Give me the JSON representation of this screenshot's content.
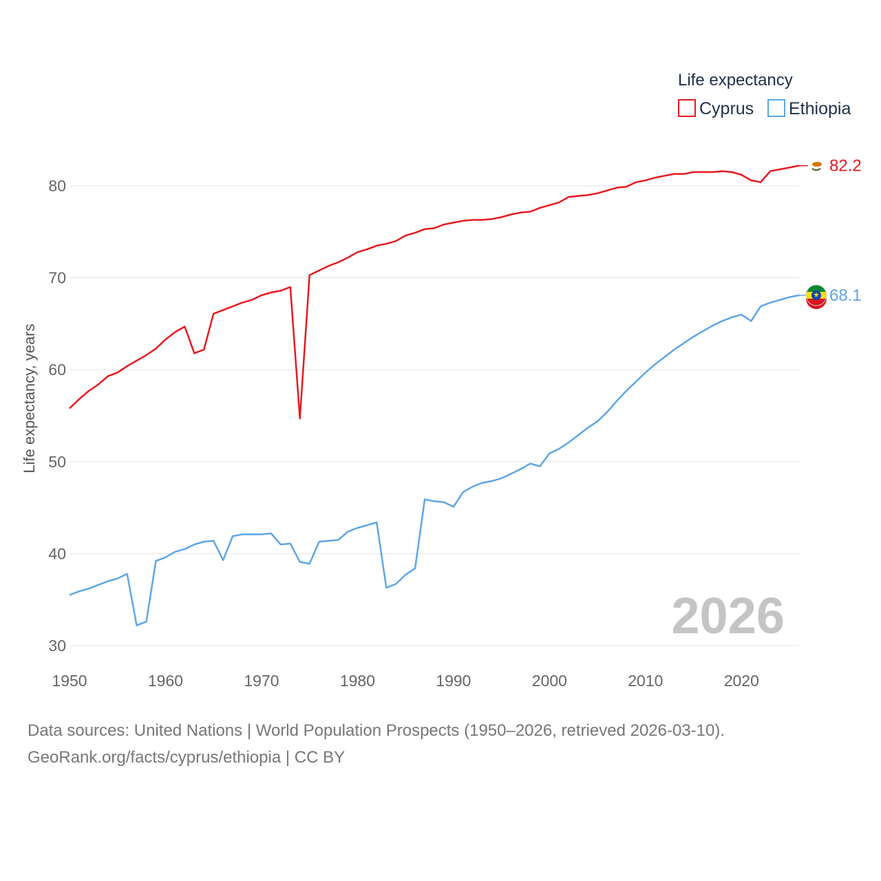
{
  "legend": {
    "title": "Life expectancy",
    "items": [
      "Cyprus",
      "Ethiopia"
    ]
  },
  "year_display": "2026",
  "footer": {
    "line1": "Data sources: United Nations | World Population Prospects (1950–2026, retrieved 2026-03-10).",
    "line2": "GeoRank.org/facts/cyprus/ethiopia | CC BY"
  },
  "chart_data": {
    "type": "line",
    "title": "",
    "xlabel": "",
    "ylabel": "Life expectancy, years",
    "xlim": [
      1950,
      2026
    ],
    "ylim": [
      30,
      83
    ],
    "x_ticks": [
      1950,
      1960,
      1970,
      1980,
      1990,
      2000,
      2010,
      2020
    ],
    "y_ticks": [
      30,
      40,
      50,
      60,
      70,
      80
    ],
    "grid": true,
    "legend_position": "top-right",
    "x": [
      1950,
      1951,
      1952,
      1953,
      1954,
      1955,
      1956,
      1957,
      1958,
      1959,
      1960,
      1961,
      1962,
      1963,
      1964,
      1965,
      1966,
      1967,
      1968,
      1969,
      1970,
      1971,
      1972,
      1973,
      1974,
      1975,
      1976,
      1977,
      1978,
      1979,
      1980,
      1981,
      1982,
      1983,
      1984,
      1985,
      1986,
      1987,
      1988,
      1989,
      1990,
      1991,
      1992,
      1993,
      1994,
      1995,
      1996,
      1997,
      1998,
      1999,
      2000,
      2001,
      2002,
      2003,
      2004,
      2005,
      2006,
      2007,
      2008,
      2009,
      2010,
      2011,
      2012,
      2013,
      2014,
      2015,
      2016,
      2017,
      2018,
      2019,
      2020,
      2021,
      2022,
      2023,
      2024,
      2025,
      2026
    ],
    "series": [
      {
        "name": "Cyprus",
        "color": "#e8191f",
        "end_label": "82.2",
        "flag_icon": "cyprus-flag-icon",
        "values": [
          55.8,
          56.8,
          57.7,
          58.4,
          59.3,
          59.7,
          60.4,
          61.0,
          61.6,
          62.3,
          63.3,
          64.1,
          64.7,
          61.8,
          62.2,
          66.1,
          66.5,
          66.9,
          67.3,
          67.6,
          68.1,
          68.4,
          68.6,
          69.0,
          54.7,
          70.3,
          70.8,
          71.3,
          71.7,
          72.2,
          72.8,
          73.1,
          73.5,
          73.7,
          74.0,
          74.6,
          74.9,
          75.3,
          75.4,
          75.8,
          76.0,
          76.2,
          76.3,
          76.3,
          76.4,
          76.6,
          76.9,
          77.1,
          77.2,
          77.6,
          77.9,
          78.2,
          78.8,
          78.9,
          79.0,
          79.2,
          79.5,
          79.8,
          79.9,
          80.4,
          80.6,
          80.9,
          81.1,
          81.3,
          81.3,
          81.5,
          81.5,
          81.5,
          81.6,
          81.5,
          81.2,
          80.6,
          80.4,
          81.6,
          81.8,
          82.0,
          82.2
        ]
      },
      {
        "name": "Ethiopia",
        "color": "#5da6e6",
        "end_label": "68.1",
        "flag_icon": "ethiopia-flag-icon",
        "values": [
          35.5,
          35.9,
          36.2,
          36.6,
          37.0,
          37.3,
          37.8,
          32.2,
          32.6,
          39.2,
          39.6,
          40.2,
          40.5,
          41.0,
          41.3,
          41.4,
          39.3,
          41.9,
          42.1,
          42.1,
          42.1,
          42.2,
          41.0,
          41.1,
          39.1,
          38.9,
          41.3,
          41.4,
          41.5,
          42.4,
          42.8,
          43.1,
          43.4,
          36.3,
          36.7,
          37.7,
          38.4,
          45.9,
          45.7,
          45.6,
          45.1,
          46.7,
          47.3,
          47.7,
          47.9,
          48.2,
          48.7,
          49.2,
          49.8,
          49.5,
          50.9,
          51.4,
          52.1,
          52.9,
          53.7,
          54.4,
          55.4,
          56.6,
          57.7,
          58.7,
          59.7,
          60.6,
          61.4,
          62.2,
          62.9,
          63.6,
          64.2,
          64.8,
          65.3,
          65.7,
          66.0,
          65.3,
          66.9,
          67.3,
          67.6,
          67.9,
          68.1
        ]
      }
    ]
  }
}
